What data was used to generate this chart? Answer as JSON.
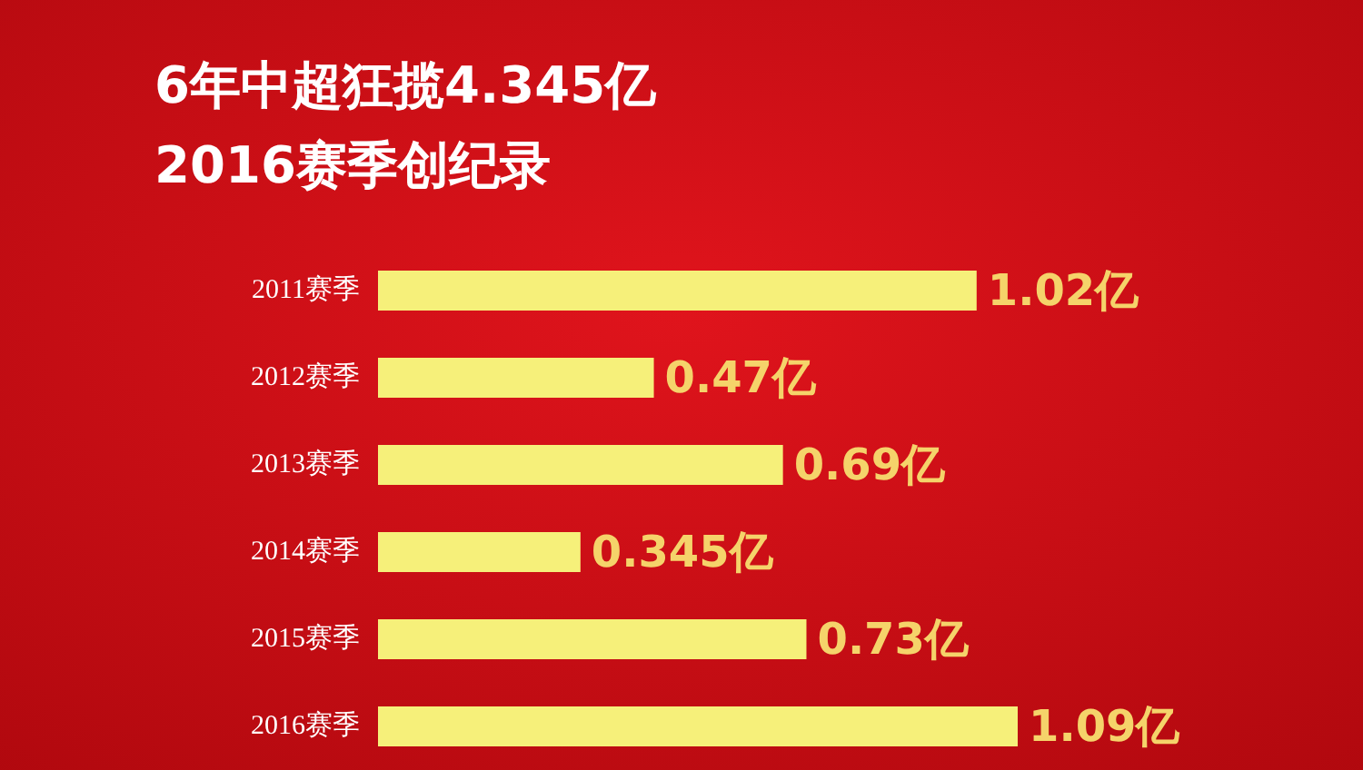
{
  "chart_data": {
    "type": "bar",
    "orientation": "horizontal",
    "title": "6年中超狂揽4.345亿",
    "subtitle": "2016赛季创纪录",
    "categories": [
      "2011赛季",
      "2012赛季",
      "2013赛季",
      "2014赛季",
      "2015赛季",
      "2016赛季"
    ],
    "values": [
      1.02,
      0.47,
      0.69,
      0.345,
      0.73,
      1.09
    ],
    "value_labels": [
      "1.02亿",
      "0.47亿",
      "0.69亿",
      "0.345亿",
      "0.73亿",
      "1.09亿"
    ],
    "color": "#f6f07a"
  }
}
